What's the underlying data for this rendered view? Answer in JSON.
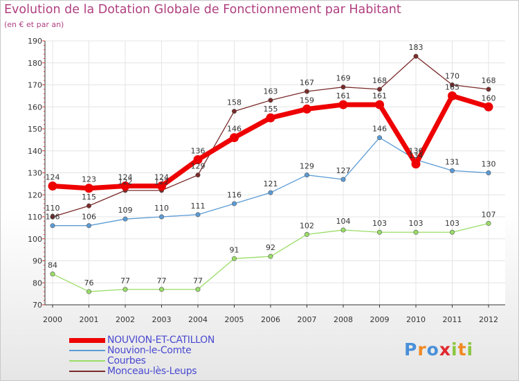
{
  "header": {
    "title": "Evolution de la Dotation Globale de Fonctionnement par Habitant",
    "subtitle": "(en € et par an)"
  },
  "chart_data": {
    "type": "line",
    "categories": [
      "2000",
      "2001",
      "2002",
      "2003",
      "2004",
      "2005",
      "2006",
      "2007",
      "2008",
      "2009",
      "2010",
      "2011",
      "2012"
    ],
    "ylim": [
      70,
      190
    ],
    "yticks": [
      70,
      80,
      90,
      100,
      110,
      120,
      130,
      140,
      150,
      160,
      170,
      180,
      190
    ],
    "grid": true,
    "series": [
      {
        "name": "NOUVION-ET-CATILLON",
        "color": "#ee0000",
        "values": [
          124,
          123,
          124,
          124,
          136,
          146,
          155,
          159,
          161,
          161,
          134,
          165,
          160
        ]
      },
      {
        "name": "Nouvion-le-Comte",
        "color": "#5b9bd5",
        "values": [
          106,
          106,
          109,
          110,
          111,
          116,
          121,
          129,
          127,
          146,
          136,
          131,
          130
        ]
      },
      {
        "name": "Courbes",
        "color": "#99dd66",
        "values": [
          84,
          76,
          77,
          77,
          77,
          91,
          92,
          102,
          104,
          103,
          103,
          103,
          107
        ]
      },
      {
        "name": "Monceau-lès-Leups",
        "color": "#7a2a2a",
        "values": [
          110,
          115,
          122,
          122,
          129,
          158,
          163,
          167,
          169,
          168,
          183,
          170,
          168
        ]
      }
    ]
  },
  "logo": {
    "letters": [
      "P",
      "r",
      "o",
      "x",
      "i",
      "t",
      "i"
    ],
    "colors": [
      "#4a90d9",
      "#f08a24",
      "#4a90d9",
      "#e0282e",
      "#8cc63f",
      "#f08a24",
      "#8cc63f"
    ]
  }
}
